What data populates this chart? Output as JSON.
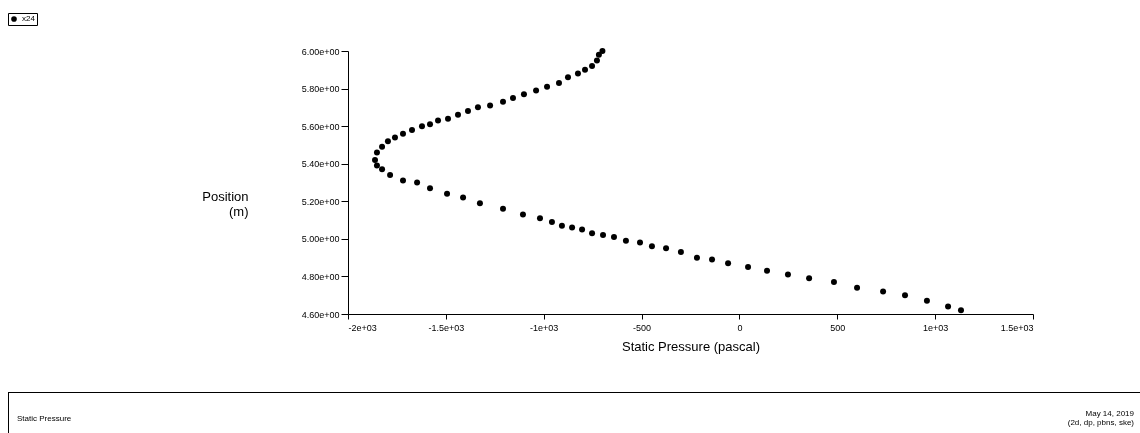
{
  "chart_data": {
    "type": "scatter",
    "xlabel": "Static Pressure (pascal)",
    "ylabel": "Position\n(m)",
    "annotations": [
      "Static Pressure",
      "May 14, 2019",
      "(2d, dp, pbns, ske)"
    ],
    "marker": "circle",
    "legend": "top left",
    "xlim": [
      -2000,
      1500
    ],
    "xticks": [
      {
        "value": -2000,
        "label": "-2e+03"
      },
      {
        "value": -1500,
        "label": "-1.5e+03"
      },
      {
        "value": -1000,
        "label": "-1e+03"
      },
      -500,
      0,
      500,
      {
        "value": 1000,
        "label": "1e+03"
      },
      {
        "value": 1500,
        "label": "1.5e+03"
      }
    ],
    "ylim": [
      4.6,
      6.0
    ],
    "yticks": [
      {
        "value": 4.6,
        "label": "4.60e+00"
      },
      {
        "value": 4.8,
        "label": "4.80e+00"
      },
      {
        "value": 5.0,
        "label": "5.00e+00"
      },
      {
        "value": 5.2,
        "label": "5.20e+00"
      },
      {
        "value": 5.4,
        "label": "5.40e+00"
      },
      {
        "value": 5.6,
        "label": "5.60e+00"
      },
      {
        "value": 5.8,
        "label": "5.80e+00"
      },
      {
        "value": 6.0,
        "label": "6.00e+00"
      }
    ],
    "series": [
      {
        "name": "x24",
        "color": "#000000",
        "x": [
          -700,
          -718,
          -728,
          -753,
          -789,
          -825,
          -876,
          -922,
          -983,
          -1039,
          -1101,
          -1157,
          -1208,
          -1274,
          -1336,
          -1387,
          -1438,
          -1489,
          -1540,
          -1581,
          -1622,
          -1673,
          -1719,
          -1760,
          -1796,
          -1826,
          -1852,
          -1862,
          -1852,
          -1826,
          -1785,
          -1719,
          -1647,
          -1581,
          -1494,
          -1412,
          -1326,
          -1208,
          -1106,
          -1019,
          -958,
          -907,
          -855,
          -804,
          -753,
          -697,
          -641,
          -580,
          -508,
          -447,
          -375,
          -299,
          -217,
          -140,
          -58,
          44,
          141,
          248,
          356,
          483,
          601,
          734,
          846,
          958,
          1066,
          1132
        ],
        "values": [
          6.0,
          5.98,
          5.95,
          5.92,
          5.9,
          5.88,
          5.86,
          5.83,
          5.81,
          5.79,
          5.77,
          5.75,
          5.73,
          5.71,
          5.7,
          5.68,
          5.66,
          5.64,
          5.63,
          5.61,
          5.6,
          5.58,
          5.56,
          5.54,
          5.52,
          5.49,
          5.46,
          5.42,
          5.39,
          5.37,
          5.34,
          5.31,
          5.3,
          5.27,
          5.24,
          5.22,
          5.19,
          5.16,
          5.13,
          5.11,
          5.09,
          5.07,
          5.06,
          5.05,
          5.03,
          5.02,
          5.01,
          4.99,
          4.98,
          4.96,
          4.95,
          4.93,
          4.9,
          4.89,
          4.87,
          4.85,
          4.83,
          4.81,
          4.79,
          4.77,
          4.74,
          4.72,
          4.7,
          4.67,
          4.64,
          4.62
        ]
      }
    ]
  }
}
